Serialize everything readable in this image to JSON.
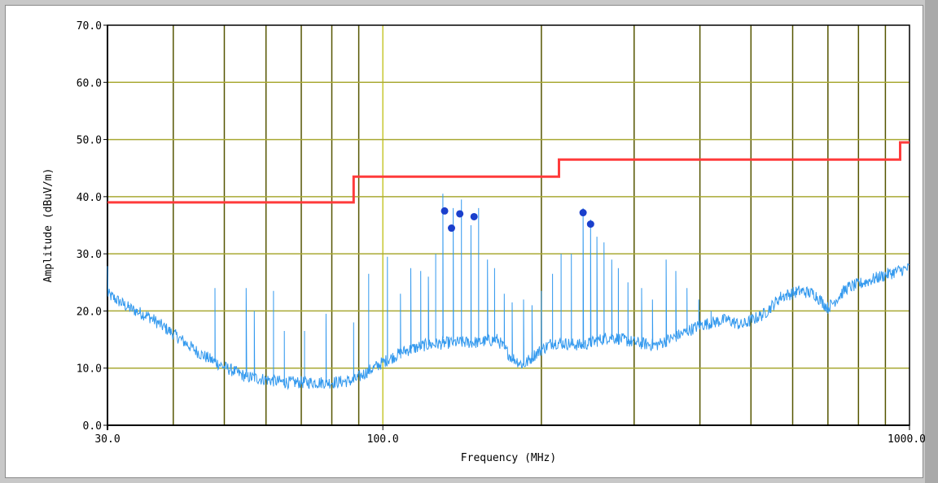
{
  "chart_data": {
    "type": "line",
    "xlabel": "Frequency (MHz)",
    "ylabel": "Amplitude (dBuV/m)",
    "xscale": "log",
    "xlim": [
      30,
      1000
    ],
    "ylim": [
      0,
      70
    ],
    "grid": true,
    "x_tick_labels": [
      {
        "value": 30,
        "label": "30.0"
      },
      {
        "value": 100,
        "label": "100.0"
      },
      {
        "value": 1000,
        "label": "1000.0"
      }
    ],
    "y_tick_labels": [
      {
        "value": 0,
        "label": "0.0"
      },
      {
        "value": 10,
        "label": "10.0"
      },
      {
        "value": 20,
        "label": "20.0"
      },
      {
        "value": 30,
        "label": "30.0"
      },
      {
        "value": 40,
        "label": "40.0"
      },
      {
        "value": 50,
        "label": "50.0"
      },
      {
        "value": 60,
        "label": "60.0"
      },
      {
        "value": 70,
        "label": "70.0"
      }
    ],
    "limit_line": {
      "color": "#ff3b3b",
      "points": [
        [
          30,
          39
        ],
        [
          88,
          39
        ],
        [
          88,
          43.5
        ],
        [
          216,
          43.5
        ],
        [
          216,
          46.5
        ],
        [
          960,
          46.5
        ],
        [
          960,
          49.5
        ],
        [
          1000,
          49.5
        ]
      ]
    },
    "trace": {
      "color": "#3399ee",
      "baseline": [
        [
          30,
          23
        ],
        [
          33,
          20.5
        ],
        [
          36,
          19
        ],
        [
          40,
          16
        ],
        [
          45,
          12.5
        ],
        [
          50,
          10.2
        ],
        [
          55,
          8.5
        ],
        [
          60,
          8
        ],
        [
          65,
          7.5
        ],
        [
          70,
          7.5
        ],
        [
          80,
          7.5
        ],
        [
          88,
          7.8
        ],
        [
          92,
          9
        ],
        [
          96,
          10
        ],
        [
          100,
          11
        ],
        [
          110,
          13
        ],
        [
          120,
          14
        ],
        [
          135,
          14.5
        ],
        [
          150,
          14.5
        ],
        [
          165,
          15
        ],
        [
          175,
          12
        ],
        [
          185,
          10.5
        ],
        [
          195,
          12.5
        ],
        [
          210,
          14.5
        ],
        [
          240,
          14
        ],
        [
          270,
          15.5
        ],
        [
          300,
          14.5
        ],
        [
          330,
          14
        ],
        [
          360,
          15.5
        ],
        [
          400,
          17.5
        ],
        [
          450,
          18.5
        ],
        [
          480,
          17.5
        ],
        [
          530,
          19.5
        ],
        [
          570,
          22.5
        ],
        [
          620,
          23.5
        ],
        [
          660,
          23
        ],
        [
          700,
          20.5
        ],
        [
          760,
          24
        ],
        [
          820,
          25
        ],
        [
          880,
          26
        ],
        [
          950,
          27
        ],
        [
          1000,
          27.5
        ]
      ],
      "spikes": [
        [
          48,
          24
        ],
        [
          55,
          24
        ],
        [
          57,
          20
        ],
        [
          62,
          23.5
        ],
        [
          65,
          16.5
        ],
        [
          71,
          16.5
        ],
        [
          78,
          19.5
        ],
        [
          88,
          18
        ],
        [
          94,
          26.5
        ],
        [
          102,
          29.5
        ],
        [
          108,
          23
        ],
        [
          113,
          27.5
        ],
        [
          118,
          27
        ],
        [
          122,
          26
        ],
        [
          126,
          30
        ],
        [
          130,
          40.5
        ],
        [
          136,
          38
        ],
        [
          141,
          39.5
        ],
        [
          147,
          35
        ],
        [
          152,
          38
        ],
        [
          158,
          29
        ],
        [
          163,
          27.5
        ],
        [
          170,
          23
        ],
        [
          176,
          21.5
        ],
        [
          185,
          22
        ],
        [
          192,
          21
        ],
        [
          200,
          23.5
        ],
        [
          210,
          26.5
        ],
        [
          218,
          30
        ],
        [
          228,
          30
        ],
        [
          240,
          38
        ],
        [
          248,
          36
        ],
        [
          255,
          33
        ],
        [
          263,
          32
        ],
        [
          272,
          29
        ],
        [
          280,
          27.5
        ],
        [
          292,
          25
        ],
        [
          310,
          24
        ],
        [
          325,
          22
        ],
        [
          345,
          29
        ],
        [
          360,
          27
        ],
        [
          378,
          24
        ],
        [
          398,
          22
        ],
        [
          420,
          20
        ]
      ]
    },
    "markers": {
      "color": "#1a3fcc",
      "points": [
        [
          131,
          37.5
        ],
        [
          135,
          34.5
        ],
        [
          140,
          37
        ],
        [
          149,
          36.5
        ],
        [
          240,
          37.2
        ],
        [
          248,
          35.2
        ]
      ]
    }
  }
}
